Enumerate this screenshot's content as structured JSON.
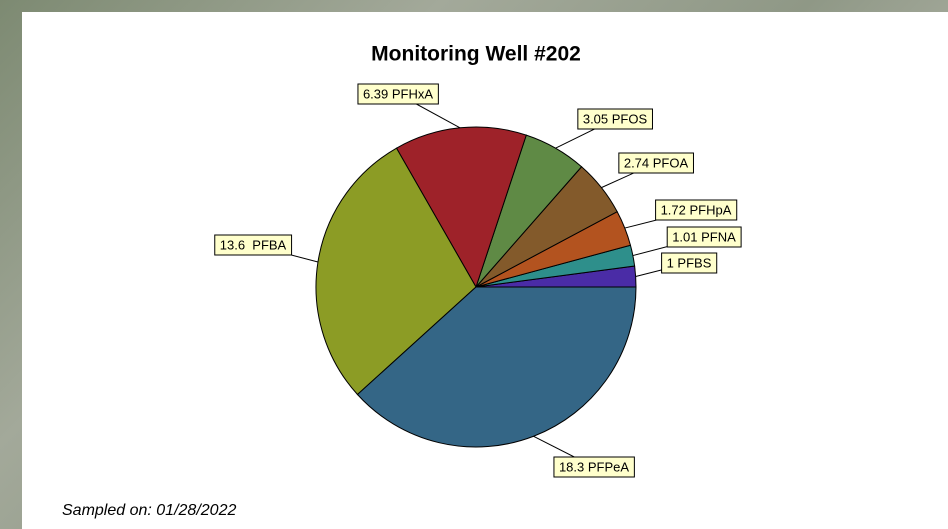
{
  "chart_data": {
    "type": "pie",
    "title": "Monitoring Well #202",
    "values": [
      1,
      1.01,
      1.72,
      2.74,
      3.05,
      6.39,
      13.6,
      18.3
    ],
    "value_labels": [
      "1 PFBS",
      "1.01 PFNA",
      "1.72 PFHpA",
      "2.74 PFOA",
      "3.05 PFOS",
      "6.39 PFHxA",
      "13.6  PFBA",
      "18.3 PFPeA"
    ],
    "colors": [
      "#4a2ca6",
      "#2e8f8b",
      "#b3531f",
      "#835a2b",
      "#5f8a45",
      "#9e2229",
      "#8c9c25",
      "#346686"
    ],
    "footnote": "Sampled on: 01/28/2022"
  }
}
